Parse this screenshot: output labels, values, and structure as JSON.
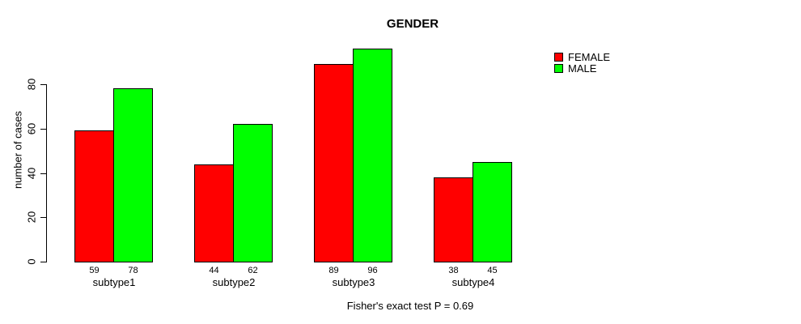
{
  "chart_data": {
    "type": "bar",
    "title": "GENDER",
    "categories": [
      "subtype1",
      "subtype2",
      "subtype3",
      "subtype4"
    ],
    "series": [
      {
        "name": "FEMALE",
        "color": "#FF0000",
        "values": [
          59,
          44,
          89,
          38
        ]
      },
      {
        "name": "MALE",
        "color": "#00FF00",
        "values": [
          78,
          62,
          96,
          45
        ]
      }
    ],
    "bar_value_labels": {
      "FEMALE": [
        59,
        44,
        89,
        38
      ],
      "MALE": [
        78,
        62,
        96,
        45
      ]
    },
    "xlabel": "",
    "ylabel": "number of cases",
    "yticks": [
      0,
      20,
      40,
      60,
      80
    ],
    "ylim": [
      0,
      96
    ],
    "grid": false,
    "legend_position": "top-right-outside",
    "annotation": "Fisher's exact test P = 0.69"
  },
  "colors": {
    "background": "#FFFFFF",
    "axis": "#000000",
    "text": "#000000",
    "female": "#FF0000",
    "male": "#00FF00"
  }
}
